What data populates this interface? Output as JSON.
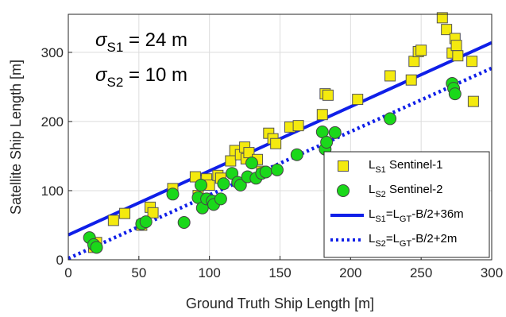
{
  "chart_data": {
    "type": "scatter",
    "xlabel": "Ground Truth Ship Length [m]",
    "ylabel": "Satellite Ship Length [m]",
    "xlim": [
      0,
      300
    ],
    "ylim": [
      0,
      355
    ],
    "xticks": [
      0,
      50,
      100,
      150,
      200,
      250,
      300
    ],
    "yticks": [
      0,
      100,
      200,
      300
    ],
    "grid": true,
    "legend_position": "bottom-right",
    "annotations": [
      {
        "symbol": "σ",
        "subscript": "S1",
        "text": " = 24 m"
      },
      {
        "symbol": "σ",
        "subscript": "S2",
        "text": " = 10 m"
      }
    ],
    "series": [
      {
        "name_main": "L",
        "name_sub": "S1",
        "name_rest": " Sentinel-1",
        "marker": "square",
        "color": "#f4ea0e",
        "edge": "#555555",
        "points": [
          [
            18,
            18
          ],
          [
            20,
            25
          ],
          [
            32,
            57
          ],
          [
            40,
            67
          ],
          [
            52,
            50
          ],
          [
            58,
            76
          ],
          [
            60,
            68
          ],
          [
            74,
            103
          ],
          [
            90,
            120
          ],
          [
            92,
            93
          ],
          [
            98,
            117
          ],
          [
            100,
            108
          ],
          [
            106,
            122
          ],
          [
            108,
            118
          ],
          [
            115,
            143
          ],
          [
            118,
            158
          ],
          [
            122,
            152
          ],
          [
            125,
            163
          ],
          [
            126,
            146
          ],
          [
            128,
            155
          ],
          [
            134,
            145
          ],
          [
            137,
            128
          ],
          [
            142,
            183
          ],
          [
            145,
            175
          ],
          [
            147,
            168
          ],
          [
            157,
            192
          ],
          [
            163,
            194
          ],
          [
            180,
            210
          ],
          [
            182,
            240
          ],
          [
            184,
            238
          ],
          [
            205,
            232
          ],
          [
            228,
            266
          ],
          [
            243,
            260
          ],
          [
            245,
            287
          ],
          [
            248,
            301
          ],
          [
            250,
            303
          ],
          [
            265,
            350
          ],
          [
            268,
            333
          ],
          [
            272,
            299
          ],
          [
            274,
            320
          ],
          [
            275,
            310
          ],
          [
            276,
            295
          ],
          [
            286,
            287
          ],
          [
            287,
            229
          ]
        ]
      },
      {
        "name_main": "L",
        "name_sub": "S2",
        "name_rest": " Sentinel-2",
        "marker": "circle",
        "color": "#1ad81a",
        "edge": "#444444",
        "points": [
          [
            15,
            32
          ],
          [
            18,
            22
          ],
          [
            20,
            18
          ],
          [
            52,
            52
          ],
          [
            55,
            55
          ],
          [
            74,
            95
          ],
          [
            82,
            54
          ],
          [
            92,
            90
          ],
          [
            94,
            108
          ],
          [
            95,
            75
          ],
          [
            98,
            88
          ],
          [
            102,
            85
          ],
          [
            103,
            80
          ],
          [
            108,
            88
          ],
          [
            110,
            110
          ],
          [
            116,
            125
          ],
          [
            120,
            112
          ],
          [
            122,
            108
          ],
          [
            127,
            120
          ],
          [
            130,
            140
          ],
          [
            133,
            118
          ],
          [
            137,
            125
          ],
          [
            140,
            127
          ],
          [
            148,
            130
          ],
          [
            162,
            152
          ],
          [
            180,
            185
          ],
          [
            182,
            160
          ],
          [
            183,
            170
          ],
          [
            189,
            184
          ],
          [
            228,
            204
          ],
          [
            272,
            255
          ],
          [
            273,
            248
          ],
          [
            274,
            240
          ]
        ]
      },
      {
        "name_main": "L",
        "name_sub": "S1",
        "name_rest": "=L",
        "name_sub2": "GT",
        "name_rest2": "-B/2+36m",
        "type": "line",
        "style": "solid",
        "color": "#0f1fe8",
        "x": [
          0,
          300
        ],
        "y": [
          36,
          314
        ]
      },
      {
        "name_main": "L",
        "name_sub": "S2",
        "name_rest": "=L",
        "name_sub2": "GT",
        "name_rest2": "-B/2+2m",
        "type": "line",
        "style": "dotted",
        "color": "#0f1fe8",
        "x": [
          0,
          300
        ],
        "y": [
          2,
          277
        ]
      }
    ]
  }
}
